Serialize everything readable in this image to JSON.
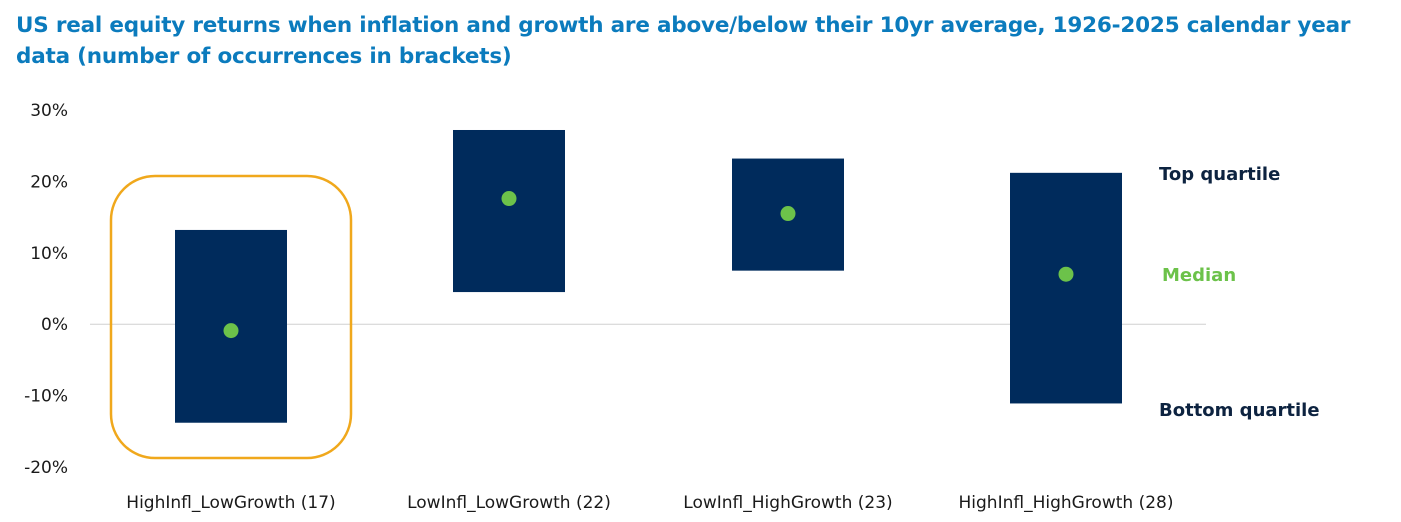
{
  "title": "US real equity returns when inflation and growth are above/below their 10yr average, 1926-2025 calendar year data (number of occurrences in brackets)",
  "colors": {
    "title": "#0b7bbd",
    "box": "#002b5c",
    "median": "#6cc24a",
    "highlight": "#f0a81c",
    "zero_line": "#d0d0d0",
    "legend_dark": "#0d2340"
  },
  "chart_data": {
    "type": "box",
    "title": "US real equity returns when inflation and growth are above/below their 10yr average, 1926-2025 calendar year data (number of occurrences in brackets)",
    "y_unit": "%",
    "ylim": [
      -20,
      30
    ],
    "yticks": [
      30,
      20,
      10,
      0,
      -10,
      -20
    ],
    "ytick_labels": [
      "30%",
      "20%",
      "10%",
      "0%",
      "-10%",
      "-20%"
    ],
    "grid": false,
    "zero_line": true,
    "categories": [
      "HighInfl_LowGrowth (17)",
      "LowInfl_LowGrowth (22)",
      "LowInfl_HighGrowth (23)",
      "HighInfl_HighGrowth (28)"
    ],
    "series": [
      {
        "name": "Top quartile",
        "values": [
          13.2,
          27.2,
          23.2,
          21.2
        ]
      },
      {
        "name": "Median",
        "values": [
          -0.9,
          17.6,
          15.5,
          7.0
        ]
      },
      {
        "name": "Bottom quartile",
        "values": [
          -13.8,
          4.5,
          7.5,
          -11.1
        ]
      }
    ],
    "highlighted_category_index": 0,
    "legend": {
      "placement": "right",
      "top_label": "Top quartile",
      "median_label": "Median",
      "bottom_label": "Bottom quartile"
    }
  }
}
